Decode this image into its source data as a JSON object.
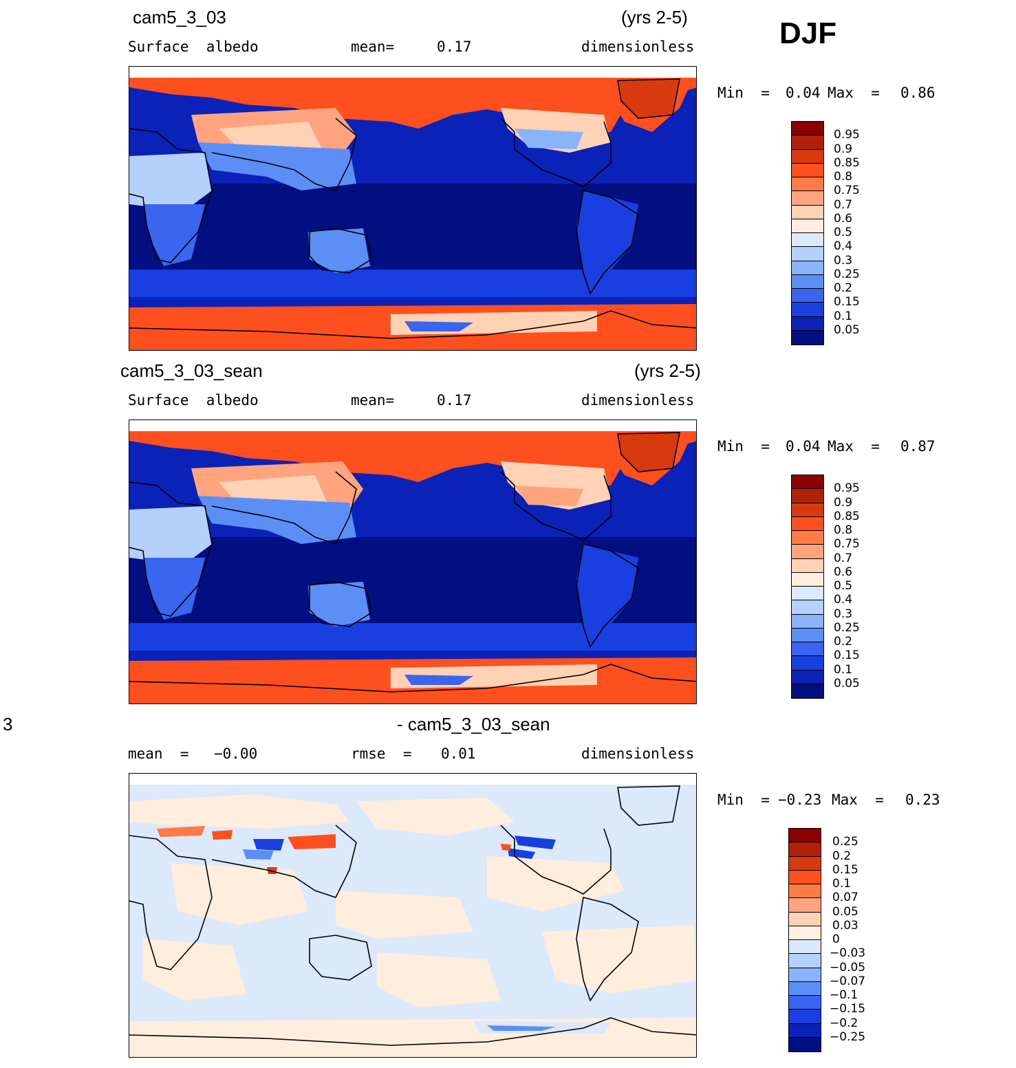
{
  "season": "DJF",
  "panels": [
    {
      "case": "cam5_3_03",
      "years": "(yrs 2-5)",
      "var_label": "Surface  albedo",
      "stat_label": "mean=",
      "stat_value": "0.17",
      "units": "dimensionless",
      "min_label": "Min  =",
      "min_value": "0.04",
      "max_label": "Max  =",
      "max_value": "0.86",
      "colorbar": {
        "colors": [
          "#8b0000",
          "#b3200a",
          "#d83a10",
          "#fe4f1f",
          "#ff7a45",
          "#ffa47e",
          "#ffd2b5",
          "#ffeedd",
          "#dbe9fb",
          "#b3d1fb",
          "#8ab4fa",
          "#5b8ff5",
          "#3a65ee",
          "#1a3fe0",
          "#0a22b8",
          "#020f80"
        ],
        "labels": [
          "0.95",
          "0.9",
          "0.85",
          "0.8",
          "0.75",
          "0.7",
          "0.6",
          "0.5",
          "0.4",
          "0.3",
          "0.25",
          "0.2",
          "0.15",
          "0.1",
          "0.05"
        ]
      }
    },
    {
      "case": "cam5_3_03_sean",
      "years": "(yrs 2-5)",
      "var_label": "Surface  albedo",
      "stat_label": "mean=",
      "stat_value": "0.17",
      "units": "dimensionless",
      "min_label": "Min  =",
      "min_value": "0.04",
      "max_label": "Max  =",
      "max_value": "0.87",
      "colorbar": {
        "colors": [
          "#8b0000",
          "#b3200a",
          "#d83a10",
          "#fe4f1f",
          "#ff7a45",
          "#ffa47e",
          "#ffd2b5",
          "#ffeedd",
          "#dbe9fb",
          "#b3d1fb",
          "#8ab4fa",
          "#5b8ff5",
          "#3a65ee",
          "#1a3fe0",
          "#0a22b8",
          "#020f80"
        ],
        "labels": [
          "0.95",
          "0.9",
          "0.85",
          "0.8",
          "0.75",
          "0.7",
          "0.6",
          "0.5",
          "0.4",
          "0.3",
          "0.25",
          "0.2",
          "0.15",
          "0.1",
          "0.05"
        ]
      }
    },
    {
      "case_prefix": "3",
      "case": "- cam5_3_03_sean",
      "mean_label": "mean  =",
      "mean_value": "−0.00",
      "rmse_label": "rmse  =",
      "rmse_value": "0.01",
      "units": "dimensionless",
      "min_label": "Min  =",
      "min_value": "−0.23",
      "max_label": "Max  =",
      "max_value": "0.23",
      "colorbar": {
        "colors": [
          "#8b0000",
          "#b3200a",
          "#d83a10",
          "#fe4f1f",
          "#ff7a45",
          "#ffa47e",
          "#ffd2b5",
          "#fff0e4",
          "#dbe9fb",
          "#b3d1fb",
          "#8ab4fa",
          "#5b8ff5",
          "#3a65ee",
          "#1a3fe0",
          "#0a22b8",
          "#020f80"
        ],
        "labels": [
          "0.25",
          "0.2",
          "0.15",
          "0.1",
          "0.07",
          "0.05",
          "0.03",
          "0",
          "−0.03",
          "−0.05",
          "−0.07",
          "−0.1",
          "−0.15",
          "−0.2",
          "−0.25"
        ]
      }
    }
  ]
}
